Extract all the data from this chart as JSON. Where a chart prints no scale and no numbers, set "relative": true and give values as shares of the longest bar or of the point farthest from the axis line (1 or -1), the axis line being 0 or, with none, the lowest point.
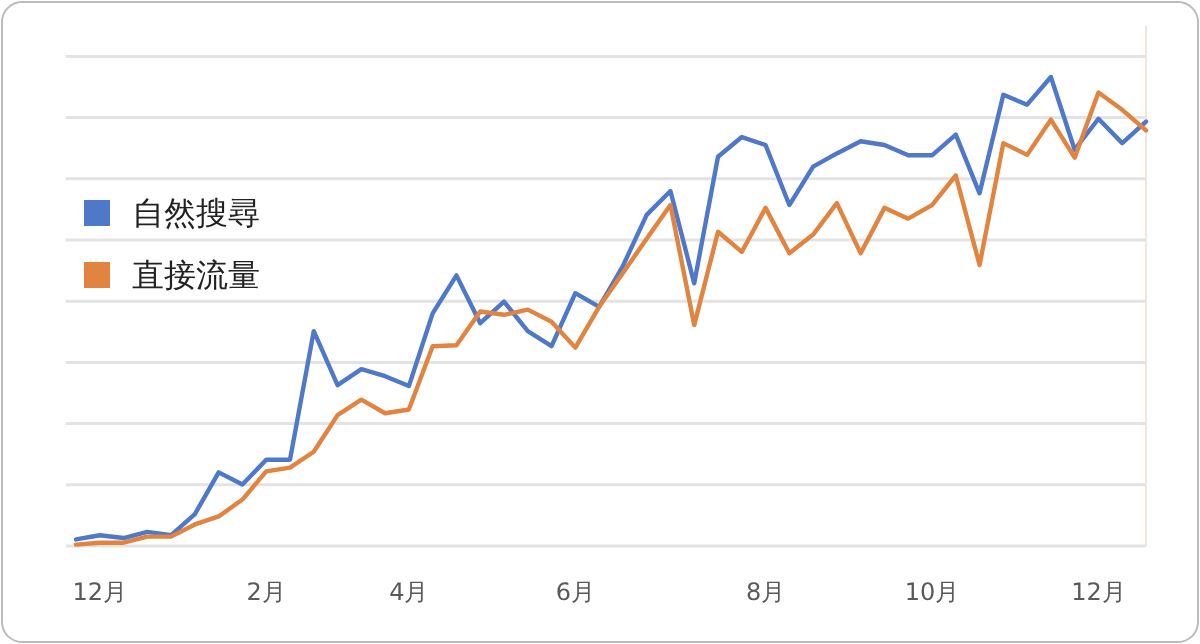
{
  "chart_data": {
    "type": "line",
    "relative": true,
    "grid": "y",
    "legend": "left",
    "line_style": "solid",
    "marker": "none",
    "categories": [
      null,
      "12月",
      null,
      null,
      null,
      null,
      null,
      null,
      "2月",
      null,
      null,
      null,
      null,
      null,
      "4月",
      null,
      null,
      null,
      null,
      null,
      null,
      "6月",
      null,
      null,
      null,
      null,
      null,
      null,
      null,
      "8月",
      null,
      null,
      null,
      null,
      null,
      null,
      "10月",
      null,
      null,
      null,
      null,
      null,
      null,
      "12月",
      null,
      null
    ],
    "series": [
      {
        "name": "自然搜尋",
        "color": "#4f78c9",
        "values": [
          0.014,
          0.023,
          0.017,
          0.03,
          0.023,
          0.068,
          0.157,
          0.131,
          0.184,
          0.184,
          0.458,
          0.343,
          0.377,
          0.362,
          0.341,
          0.496,
          0.577,
          0.475,
          0.521,
          0.458,
          0.426,
          0.539,
          0.51,
          0.597,
          0.706,
          0.757,
          0.56,
          0.83,
          0.872,
          0.855,
          0.727,
          0.809,
          0.837,
          0.863,
          0.855,
          0.833,
          0.833,
          0.877,
          0.752,
          0.962,
          0.941,
          1,
          0.845,
          0.911,
          0.859,
          0.905
        ]
      },
      {
        "name": "直接流量",
        "color": "#e0843f",
        "values": [
          0.003,
          0.007,
          0.007,
          0.02,
          0.02,
          0.046,
          0.063,
          0.099,
          0.159,
          0.167,
          0.201,
          0.279,
          0.312,
          0.283,
          0.291,
          0.426,
          0.428,
          0.5,
          0.493,
          0.504,
          0.478,
          0.423,
          0.51,
          0.582,
          0.655,
          0.727,
          0.471,
          0.67,
          0.627,
          0.721,
          0.624,
          0.664,
          0.731,
          0.624,
          0.721,
          0.698,
          0.727,
          0.79,
          0.599,
          0.859,
          0.834,
          0.909,
          0.828,
          0.967,
          0.93,
          0.886
        ]
      }
    ]
  }
}
